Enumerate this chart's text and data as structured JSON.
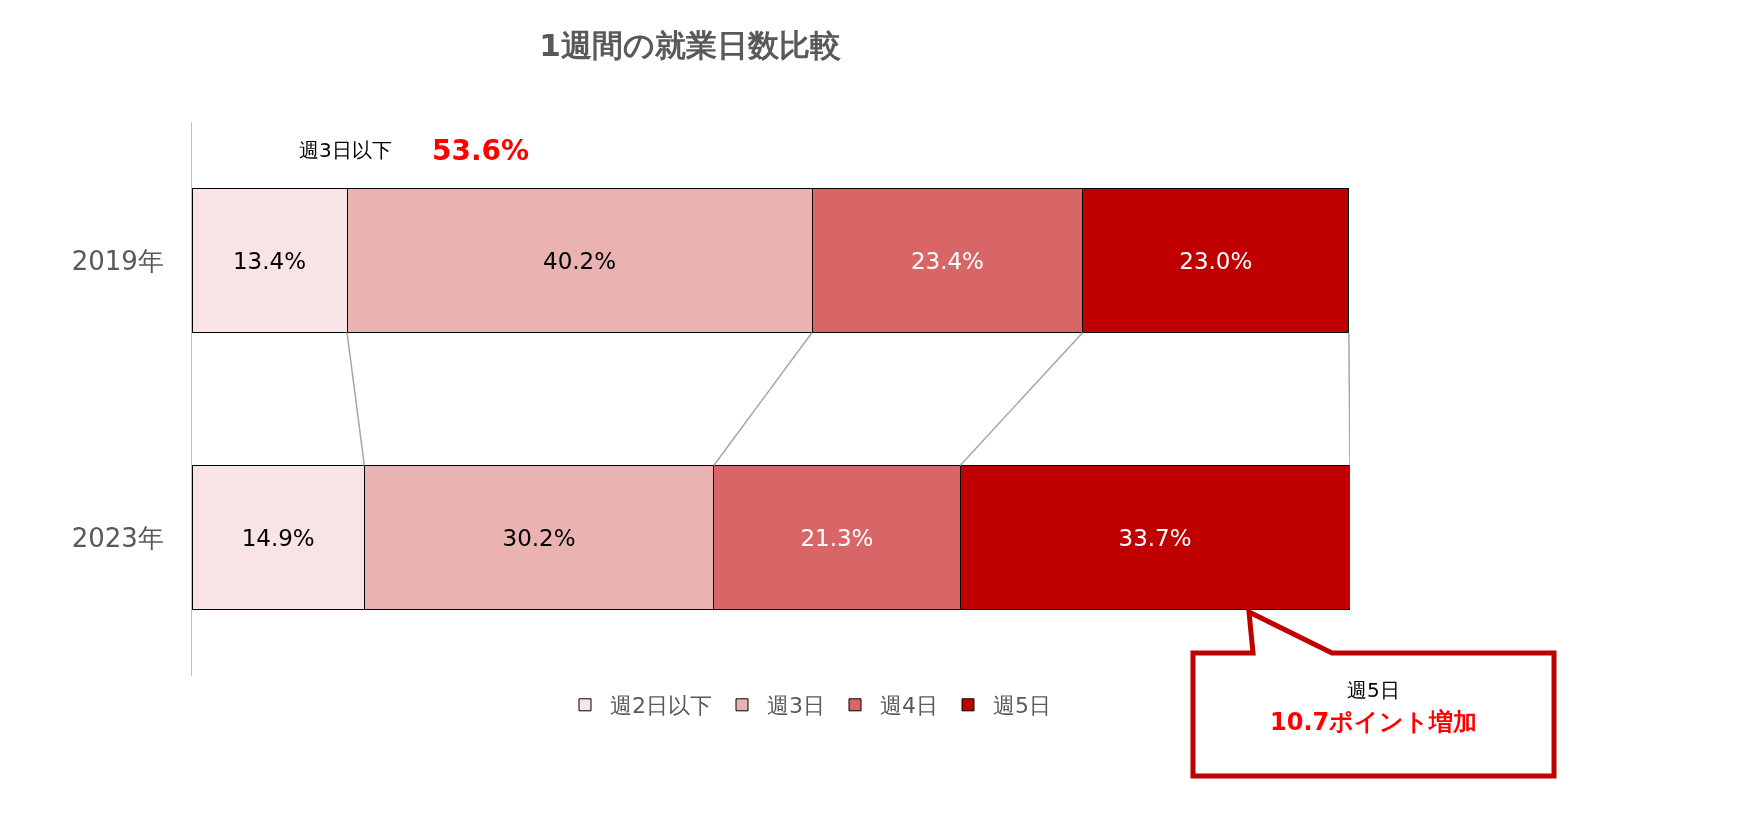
{
  "chart_data": {
    "type": "bar",
    "orientation": "horizontal",
    "stacked": true,
    "title": "1週間の就業日数比較",
    "categories": [
      "2019年",
      "2023年"
    ],
    "series": [
      {
        "name": "週2日以下",
        "color": "#f8e4e4",
        "values": [
          13.4,
          14.9
        ],
        "value_labels": [
          "13.4%",
          "14.9%"
        ]
      },
      {
        "name": "週3日",
        "color": "#ebb2b2",
        "values": [
          40.2,
          30.2
        ],
        "value_labels": [
          "40.2%",
          "30.2%"
        ]
      },
      {
        "name": "週4日",
        "color": "#d96666",
        "values": [
          23.4,
          21.3
        ],
        "value_labels": [
          "23.4%",
          "21.3%"
        ]
      },
      {
        "name": "週5日",
        "color": "#c00000",
        "values": [
          23.0,
          33.7
        ],
        "value_labels": [
          "23.0%",
          "33.7%"
        ]
      }
    ],
    "tick_labels": "y",
    "legend": "bottom",
    "annotations": [
      "週3日以下",
      "53.6%",
      "週5日",
      "10.7ポイント増加"
    ]
  }
}
